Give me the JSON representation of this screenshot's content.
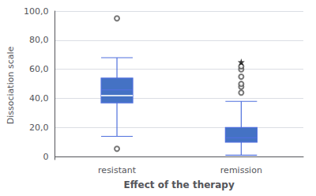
{
  "chart_data": {
    "type": "boxplot",
    "xlabel": "Effect of the therapy",
    "ylabel": "Dissociation scale",
    "categories": [
      "resistant",
      "remission"
    ],
    "color": "#4472C4",
    "ylim": [
      -2,
      100
    ],
    "yticks": [
      0,
      {
        "value": 20,
        "label": "20,0"
      },
      {
        "value": 40,
        "label": "40,0"
      },
      {
        "value": 60,
        "label": "60,0"
      },
      {
        "value": 80,
        "label": "80,0"
      },
      {
        "value": 100,
        "label": "100,0"
      }
    ],
    "grid": true,
    "boxes": [
      {
        "whisker_low": 14.0,
        "q1": 37.0,
        "median": 46.0,
        "q3": 54.0,
        "whisker_high": 68.0,
        "mean": 42.0,
        "outliers": {
          "circle": [
            5.5,
            95.0
          ],
          "star": []
        }
      },
      {
        "whisker_low": 1.0,
        "q1": 10.0,
        "median": 13.0,
        "q3": 20.0,
        "whisker_high": 38.0,
        "outliers": {
          "circle": [
            44.0,
            48.0,
            50.0,
            55.0,
            60.0,
            62.0
          ],
          "star": [
            65.0
          ]
        }
      }
    ]
  }
}
